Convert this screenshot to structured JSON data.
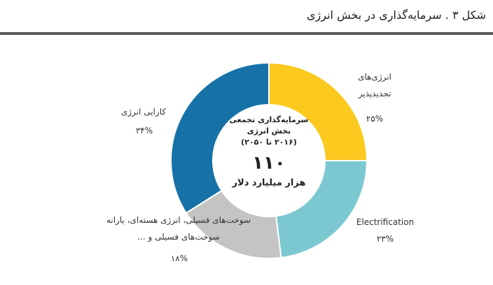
{
  "title": "شکل ۳ . سرمایه‌گذاری در بخش انرژی",
  "chart_data": {
    "type": "donut",
    "categories": [
      "انرژی‌های تجدیدپذیر",
      "Electrification",
      "سوخت‌های فسیلی، انرژی هسته‌ای، یارانه سوخت‌های فسیلی و ...",
      "کارایی انرژی"
    ],
    "values": [
      25,
      23,
      18,
      34
    ],
    "value_labels": [
      "۲۵%",
      "۲۳%",
      "۱۸%",
      "۳۴%"
    ],
    "colors": [
      "#fcc91f",
      "#7cc8d0",
      "#c4c4c4",
      "#1672a6"
    ],
    "center_lines": [
      "سرمایه‌گذاری تجمعی",
      "بخش انرژی",
      "(۲۰۱۶ تا ۲۰۵۰)"
    ],
    "total": {
      "value": 110,
      "label": "۱۱۰"
    },
    "total_unit": "هزار میلیارد دلار"
  }
}
